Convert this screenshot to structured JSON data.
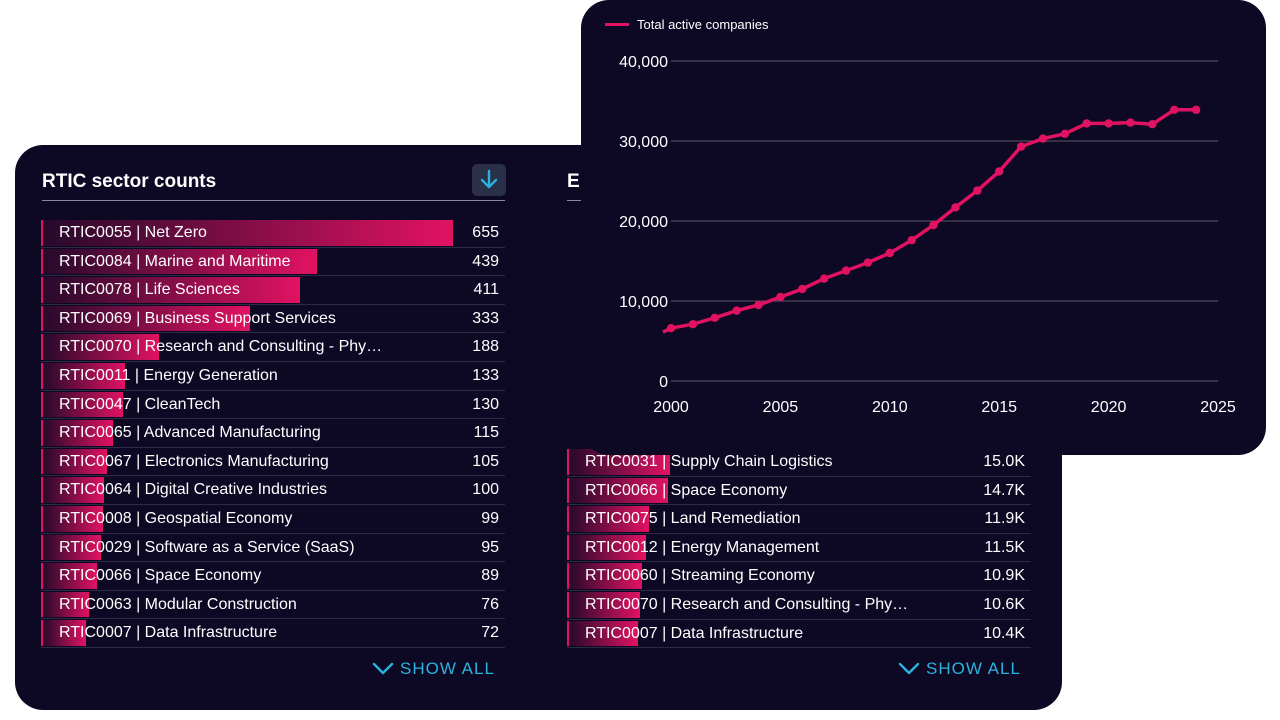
{
  "left_section": {
    "title": "RTIC sector counts",
    "download_icon": "download-arrow-icon",
    "show_all_label": "SHOW ALL",
    "max": 655,
    "rows": [
      {
        "label": "RTIC0055 | Net Zero",
        "value": "655",
        "num": 655
      },
      {
        "label": "RTIC0084 | Marine and Maritime",
        "value": "439",
        "num": 439
      },
      {
        "label": "RTIC0078 | Life Sciences",
        "value": "411",
        "num": 411
      },
      {
        "label": "RTIC0069 | Business Support Services",
        "value": "333",
        "num": 333
      },
      {
        "label": "RTIC0070 | Research and Consulting - Phy…",
        "value": "188",
        "num": 188
      },
      {
        "label": "RTIC0011 | Energy Generation",
        "value": "133",
        "num": 133
      },
      {
        "label": "RTIC0047 | CleanTech",
        "value": "130",
        "num": 130
      },
      {
        "label": "RTIC0065 | Advanced Manufacturing",
        "value": "115",
        "num": 115
      },
      {
        "label": "RTIC0067 | Electronics Manufacturing",
        "value": "105",
        "num": 105
      },
      {
        "label": "RTIC0064 | Digital Creative Industries",
        "value": "100",
        "num": 100
      },
      {
        "label": "RTIC0008 | Geospatial Economy",
        "value": "99",
        "num": 99
      },
      {
        "label": "RTIC0029 | Software as a Service (SaaS)",
        "value": "95",
        "num": 95
      },
      {
        "label": "RTIC0066 | Space Economy",
        "value": "89",
        "num": 89
      },
      {
        "label": "RTIC0063 | Modular Construction",
        "value": "76",
        "num": 76
      },
      {
        "label": "RTIC0007 | Data Infrastructure",
        "value": "72",
        "num": 72
      }
    ]
  },
  "right_section": {
    "title_visible": "E",
    "show_all_label": "SHOW ALL",
    "max": 60000,
    "rows": [
      {
        "label": "RTIC0031 | Supply Chain Logistics",
        "value": "15.0K",
        "num": 15000
      },
      {
        "label": "RTIC0066 | Space Economy",
        "value": "14.7K",
        "num": 14700
      },
      {
        "label": "RTIC0075 | Land Remediation",
        "value": "11.9K",
        "num": 11900
      },
      {
        "label": "RTIC0012 | Energy Management",
        "value": "11.5K",
        "num": 11500
      },
      {
        "label": "RTIC0060 | Streaming Economy",
        "value": "10.9K",
        "num": 10900
      },
      {
        "label": "RTIC0070 | Research and Consulting - Phy…",
        "value": "10.6K",
        "num": 10600
      },
      {
        "label": "RTIC0007 | Data Infrastructure",
        "value": "10.4K",
        "num": 10400
      }
    ]
  },
  "chart_data": {
    "type": "line",
    "title": "",
    "xlabel": "",
    "ylabel": "",
    "legend": "top-left",
    "grid": true,
    "series": [
      {
        "name": "Total active companies",
        "color": "#e21262",
        "x": [
          2000,
          2001,
          2002,
          2003,
          2004,
          2005,
          2006,
          2007,
          2008,
          2009,
          2010,
          2011,
          2012,
          2013,
          2014,
          2015,
          2016,
          2017,
          2018,
          2019,
          2020,
          2021,
          2022,
          2023,
          2024
        ],
        "y": [
          6600,
          7100,
          7900,
          8800,
          9500,
          10500,
          11500,
          12800,
          13800,
          14800,
          16000,
          17600,
          19500,
          21700,
          23800,
          26200,
          29300,
          30300,
          30900,
          32200,
          32200,
          32300,
          32100,
          33900,
          33900
        ]
      }
    ],
    "xlim": [
      2000,
      2025
    ],
    "ylim": [
      0,
      40000
    ],
    "xticks": [
      2000,
      2005,
      2010,
      2015,
      2020,
      2025
    ],
    "xtick_labels": [
      "2000",
      "2005",
      "2010",
      "2015",
      "2020",
      "2025"
    ],
    "yticks": [
      0,
      10000,
      20000,
      30000,
      40000
    ],
    "ytick_labels": [
      "0",
      "10,000",
      "20,000",
      "30,000",
      "40,000"
    ]
  }
}
